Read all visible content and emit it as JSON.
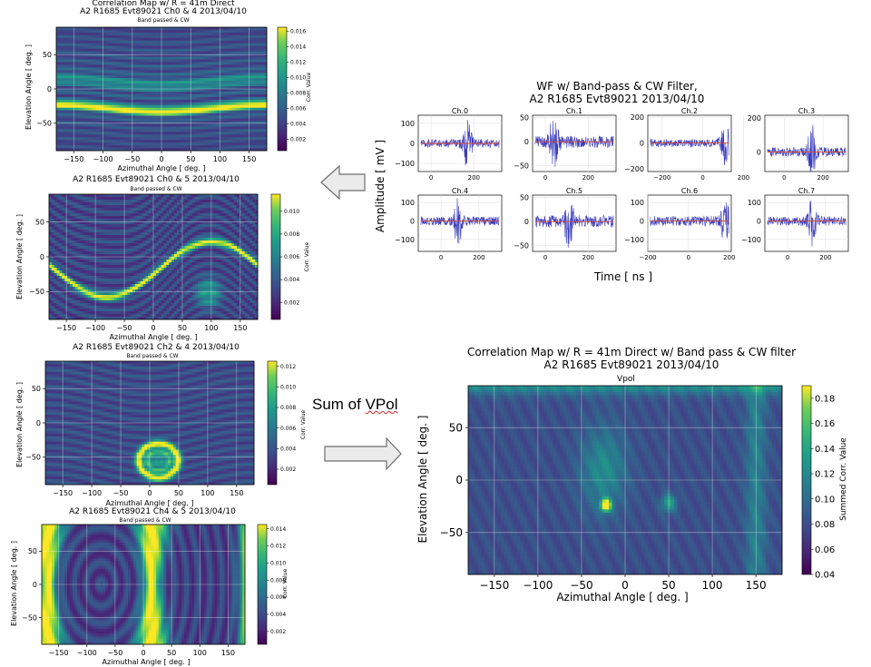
{
  "labels": {
    "sum_of_vpol_prefix": "Sum of ",
    "sum_of_vpol_word": "VPol",
    "elevation_axis": "Elevation Angle [ deg. ]",
    "azimuthal_axis": "Azimuthal Angle [ deg. ]",
    "corr_value": "Corr. Value",
    "summed_corr_value": "Summed Corr. Value",
    "band_passed": "Band passed & CW"
  },
  "colors": {
    "viridis_dark": "#440154",
    "viridis_mid": "#21918c",
    "viridis_bright": "#fde725",
    "waveform": "#3b3bbb",
    "waveform_mean": "#d64a3a",
    "arrow_fill": "#ebebeb",
    "arrow_stroke": "#6d6d6d"
  },
  "chart_data": [
    {
      "id": "map_ch0_4",
      "type": "heatmap",
      "title_lines": [
        "Correlation Map w/ R = 41m Direct",
        "A2 R1685 Evt89021 Ch0 & 4 2013/04/10"
      ],
      "subtitle": "Band passed & CW",
      "xlabel": "Azimuthal Angle [ deg. ]",
      "ylabel": "Elevation Angle [ deg. ]",
      "xlim": [
        -180,
        180
      ],
      "ylim": [
        -90,
        90
      ],
      "xticks": [
        -150,
        -100,
        -50,
        0,
        50,
        100,
        150
      ],
      "yticks": [
        50,
        0,
        -50
      ],
      "colorbar": {
        "label": "Corr. Value",
        "min": 0.0005,
        "max": 0.0165,
        "ticks": [
          "0.016",
          "0.014",
          "0.012",
          "0.010",
          "0.008",
          "0.006",
          "0.004",
          "0.002"
        ]
      },
      "pattern": "horizontal-bands",
      "peak_ridge_elevation": -28
    },
    {
      "id": "map_ch0_5",
      "type": "heatmap",
      "title_lines": [
        "A2 R1685 Evt89021 Ch0 & 5 2013/04/10"
      ],
      "subtitle": "Band passed & CW",
      "xlabel": "Azimuthal Angle [ deg. ]",
      "ylabel": "Elevation Angle [ deg. ]",
      "xlim": [
        -180,
        180
      ],
      "ylim": [
        -90,
        90
      ],
      "xticks": [
        -150,
        -100,
        -50,
        0,
        50,
        100,
        150
      ],
      "yticks": [
        50,
        0,
        -50
      ],
      "colorbar": {
        "label": "Corr. Value",
        "min": 0.0005,
        "max": 0.0115,
        "ticks": [
          "0.010",
          "0.008",
          "0.006",
          "0.004",
          "0.002"
        ]
      },
      "pattern": "sinusoidal-ridge",
      "ridge_amplitude": 40,
      "ridge_center_azimuth": 100,
      "ridge_offset": -18
    },
    {
      "id": "map_ch2_4",
      "type": "heatmap",
      "title_lines": [
        "A2 R1685 Evt89021 Ch2 & 4 2013/04/10"
      ],
      "subtitle": "Band passed & CW",
      "xlabel": "Azimuthal Angle [ deg. ]",
      "ylabel": "Elevation Angle [ deg. ]",
      "xlim": [
        -180,
        180
      ],
      "ylim": [
        -90,
        90
      ],
      "xticks": [
        -150,
        -100,
        -50,
        0,
        50,
        100,
        150
      ],
      "yticks": [
        50,
        0,
        -50
      ],
      "colorbar": {
        "label": "Corr. Value",
        "min": 0.0005,
        "max": 0.0125,
        "ticks": [
          "0.012",
          "0.010",
          "0.008",
          "0.006",
          "0.004",
          "0.002"
        ]
      },
      "pattern": "closed-loop",
      "loop_center": [
        15,
        -55
      ]
    },
    {
      "id": "map_ch4_5",
      "type": "heatmap",
      "title_lines": [
        "A2 R1685 Evt89021 Ch4 & 5 2013/04/10"
      ],
      "subtitle": "Band passed & CW",
      "xlabel": "Azimuthal Angle [ deg. ]",
      "ylabel": "Elevation Angle [ deg. ]",
      "xlim": [
        -180,
        180
      ],
      "ylim": [
        -90,
        90
      ],
      "xticks": [
        -150,
        -100,
        -50,
        0,
        50,
        100,
        150
      ],
      "yticks": [
        50,
        0,
        -50
      ],
      "colorbar": {
        "label": "Corr. Value",
        "min": 0.0005,
        "max": 0.0145,
        "ticks": [
          "0.014",
          "0.012",
          "0.010",
          "0.008",
          "0.006",
          "0.004",
          "0.002"
        ]
      },
      "pattern": "vertical-bands",
      "ridge_azimuths": [
        -170,
        15
      ]
    },
    {
      "id": "waveforms",
      "type": "line",
      "title_lines": [
        "WF w/ Band-pass & CW Filter,",
        "A2 R1685 Evt89021 2013/04/10"
      ],
      "xlabel": "Time [ ns ]",
      "ylabel": "Amplitude [ mV ]",
      "channels": [
        {
          "name": "Ch.0",
          "xlim": [
            -60,
            330
          ],
          "ylim": [
            -140,
            140
          ],
          "xticks": [
            "0",
            "200"
          ],
          "yticks": [
            "100",
            "0",
            "-100"
          ],
          "burst_time": 170,
          "noise": 22,
          "burst": 110
        },
        {
          "name": "Ch.1",
          "xlim": [
            -60,
            330
          ],
          "ylim": [
            -62,
            55
          ],
          "xticks": [
            "0",
            "200"
          ],
          "yticks": [
            "50",
            "0",
            "-50"
          ],
          "burst_time": 40,
          "noise": 13,
          "burst": 55
        },
        {
          "name": "Ch.2",
          "xlim": [
            -270,
            140
          ],
          "ylim": [
            -220,
            215
          ],
          "xticks": [
            "-200",
            "0",
            "200"
          ],
          "yticks": [
            "200",
            "0",
            "-200"
          ],
          "burst_time": 110,
          "noise": 32,
          "burst": 210
        },
        {
          "name": "Ch.3",
          "xlim": [
            -100,
            330
          ],
          "ylim": [
            -115,
            215
          ],
          "xticks": [
            "0",
            "200"
          ],
          "yticks": [
            "200",
            "0"
          ],
          "burst_time": 140,
          "noise": 28,
          "burst": 150
        },
        {
          "name": "Ch.4",
          "xlim": [
            -120,
            320
          ],
          "ylim": [
            -165,
            140
          ],
          "xticks": [
            "0",
            "200"
          ],
          "yticks": [
            "100",
            "0",
            "-100"
          ],
          "burst_time": 90,
          "noise": 26,
          "burst": 125
        },
        {
          "name": "Ch.5",
          "xlim": [
            -60,
            330
          ],
          "ylim": [
            -62,
            55
          ],
          "xticks": [
            "0",
            "200"
          ],
          "yticks": [
            "50",
            "0",
            "-50"
          ],
          "burst_time": 110,
          "noise": 13,
          "burst": 55
        },
        {
          "name": "Ch.6",
          "xlim": [
            -200,
            210
          ],
          "ylim": [
            -165,
            140
          ],
          "xticks": [
            "-200",
            "0",
            "200"
          ],
          "yticks": [
            "100",
            "0",
            "-100"
          ],
          "burst_time": 180,
          "noise": 28,
          "burst": 120
        },
        {
          "name": "Ch.7",
          "xlim": [
            -120,
            320
          ],
          "ylim": [
            -165,
            140
          ],
          "xticks": [
            "0",
            "200"
          ],
          "yticks": [
            "100",
            "0",
            "-100"
          ],
          "burst_time": 130,
          "noise": 26,
          "burst": 115
        }
      ]
    },
    {
      "id": "map_sum_vpol",
      "type": "heatmap",
      "title_lines": [
        "Correlation Map w/ R = 41m Direct w/ Band pass & CW filter",
        "A2 R1685 Evt89021 2013/04/10"
      ],
      "subtitle": "Vpol",
      "xlabel": "Azimuthal Angle [ deg. ]",
      "ylabel": "Elevation Angle [ deg. ]",
      "xlim": [
        -180,
        180
      ],
      "ylim": [
        -90,
        90
      ],
      "xticks": [
        -150,
        -100,
        -50,
        0,
        50,
        100,
        150
      ],
      "yticks": [
        50,
        0,
        -50
      ],
      "colorbar": {
        "label": "Summed Corr. Value",
        "min": 0.04,
        "max": 0.19,
        "ticks": [
          "0.18",
          "0.16",
          "0.14",
          "0.12",
          "0.10",
          "0.08",
          "0.06",
          "0.04"
        ]
      },
      "pattern": "summed",
      "peak": [
        -22,
        -24
      ]
    }
  ]
}
